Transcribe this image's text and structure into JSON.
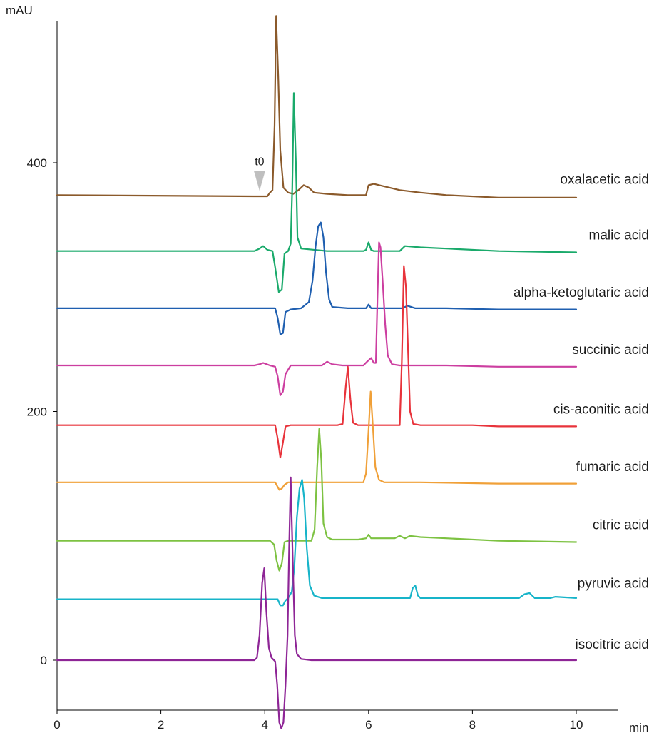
{
  "chart_data": {
    "type": "line",
    "title": "",
    "xlabel": "min",
    "ylabel": "mAU",
    "xlim": [
      0,
      10
    ],
    "ylim": [
      -50,
      520
    ],
    "x_ticks": [
      0,
      2,
      4,
      6,
      8,
      10
    ],
    "y_ticks": [
      0,
      200,
      400
    ],
    "grid": false,
    "annotations": [
      {
        "text": "t0",
        "x": 3.9,
        "marker": "triangle-down",
        "color": "#bfbfbf"
      }
    ],
    "series": [
      {
        "name": "oxalacetic acid",
        "color": "#8b5a2b",
        "baseline": 374,
        "points": [
          [
            0,
            374
          ],
          [
            3.8,
            373
          ],
          [
            3.95,
            373
          ],
          [
            4.05,
            373
          ],
          [
            4.1,
            376
          ],
          [
            4.15,
            378
          ],
          [
            4.19,
            430
          ],
          [
            4.22,
            518
          ],
          [
            4.26,
            470
          ],
          [
            4.3,
            410
          ],
          [
            4.36,
            380
          ],
          [
            4.45,
            376
          ],
          [
            4.55,
            375
          ],
          [
            4.65,
            378
          ],
          [
            4.75,
            382
          ],
          [
            4.85,
            380
          ],
          [
            4.95,
            376
          ],
          [
            5.2,
            375
          ],
          [
            5.6,
            374
          ],
          [
            5.95,
            374
          ],
          [
            6.0,
            382
          ],
          [
            6.1,
            383
          ],
          [
            6.3,
            381
          ],
          [
            6.6,
            378
          ],
          [
            7.0,
            376
          ],
          [
            7.5,
            374
          ],
          [
            8.5,
            372
          ],
          [
            10,
            372
          ]
        ]
      },
      {
        "name": "malic acid",
        "color": "#1aaa6b",
        "baseline": 329,
        "points": [
          [
            0,
            329
          ],
          [
            3.8,
            329
          ],
          [
            3.9,
            331
          ],
          [
            3.97,
            333
          ],
          [
            4.05,
            330
          ],
          [
            4.15,
            329
          ],
          [
            4.2,
            316
          ],
          [
            4.27,
            296
          ],
          [
            4.33,
            298
          ],
          [
            4.38,
            327
          ],
          [
            4.45,
            329
          ],
          [
            4.5,
            335
          ],
          [
            4.53,
            380
          ],
          [
            4.56,
            456
          ],
          [
            4.6,
            400
          ],
          [
            4.63,
            340
          ],
          [
            4.7,
            331
          ],
          [
            5.2,
            329
          ],
          [
            5.9,
            329
          ],
          [
            5.95,
            330
          ],
          [
            6.0,
            336
          ],
          [
            6.05,
            330
          ],
          [
            6.1,
            329
          ],
          [
            6.6,
            329
          ],
          [
            6.7,
            333
          ],
          [
            7.0,
            332
          ],
          [
            7.5,
            331
          ],
          [
            8.5,
            329
          ],
          [
            10,
            328
          ]
        ]
      },
      {
        "name": "alpha-ketoglutaric acid",
        "color": "#1f5fb0",
        "baseline": 283,
        "points": [
          [
            0,
            283
          ],
          [
            3.8,
            283
          ],
          [
            4.2,
            283
          ],
          [
            4.25,
            275
          ],
          [
            4.3,
            262
          ],
          [
            4.35,
            263
          ],
          [
            4.4,
            280
          ],
          [
            4.5,
            282
          ],
          [
            4.7,
            283
          ],
          [
            4.85,
            288
          ],
          [
            4.92,
            305
          ],
          [
            4.98,
            333
          ],
          [
            5.03,
            349
          ],
          [
            5.08,
            352
          ],
          [
            5.13,
            340
          ],
          [
            5.18,
            312
          ],
          [
            5.24,
            290
          ],
          [
            5.3,
            284
          ],
          [
            5.6,
            283
          ],
          [
            5.95,
            283
          ],
          [
            6.0,
            286
          ],
          [
            6.05,
            283
          ],
          [
            6.5,
            283
          ],
          [
            6.65,
            283
          ],
          [
            6.75,
            285
          ],
          [
            6.9,
            283
          ],
          [
            7.5,
            283
          ],
          [
            8.5,
            282
          ],
          [
            10,
            282
          ]
        ]
      },
      {
        "name": "succinic  acid",
        "color": "#cc3ea0",
        "baseline": 237,
        "points": [
          [
            0,
            237
          ],
          [
            3.8,
            237
          ],
          [
            3.9,
            238
          ],
          [
            3.97,
            239
          ],
          [
            4.1,
            237
          ],
          [
            4.2,
            236
          ],
          [
            4.25,
            228
          ],
          [
            4.3,
            213
          ],
          [
            4.35,
            216
          ],
          [
            4.4,
            230
          ],
          [
            4.5,
            237
          ],
          [
            5.1,
            237
          ],
          [
            5.2,
            240
          ],
          [
            5.3,
            238
          ],
          [
            5.5,
            237
          ],
          [
            5.9,
            237
          ],
          [
            5.97,
            240
          ],
          [
            6.05,
            243
          ],
          [
            6.1,
            239
          ],
          [
            6.14,
            239
          ],
          [
            6.17,
            290
          ],
          [
            6.2,
            336
          ],
          [
            6.23,
            332
          ],
          [
            6.27,
            305
          ],
          [
            6.32,
            270
          ],
          [
            6.37,
            245
          ],
          [
            6.45,
            238
          ],
          [
            6.6,
            237
          ],
          [
            7.0,
            237
          ],
          [
            7.5,
            237
          ],
          [
            8.5,
            236
          ],
          [
            10,
            236
          ]
        ]
      },
      {
        "name": "cis-aconitic acid",
        "color": "#e8333b",
        "baseline": 189,
        "points": [
          [
            0,
            189
          ],
          [
            3.8,
            189
          ],
          [
            4.2,
            189
          ],
          [
            4.25,
            178
          ],
          [
            4.3,
            163
          ],
          [
            4.35,
            175
          ],
          [
            4.4,
            188
          ],
          [
            4.5,
            189
          ],
          [
            5.4,
            189
          ],
          [
            5.5,
            190
          ],
          [
            5.56,
            220
          ],
          [
            5.6,
            236
          ],
          [
            5.65,
            210
          ],
          [
            5.7,
            191
          ],
          [
            5.8,
            189
          ],
          [
            6.6,
            189
          ],
          [
            6.64,
            240
          ],
          [
            6.68,
            317
          ],
          [
            6.72,
            300
          ],
          [
            6.76,
            250
          ],
          [
            6.8,
            200
          ],
          [
            6.86,
            190
          ],
          [
            7.0,
            189
          ],
          [
            8.0,
            189
          ],
          [
            8.5,
            188
          ],
          [
            10,
            188
          ]
        ]
      },
      {
        "name": "fumaric  acid",
        "color": "#f0a038",
        "baseline": 143,
        "points": [
          [
            0,
            143
          ],
          [
            3.8,
            143
          ],
          [
            4.2,
            143
          ],
          [
            4.28,
            137
          ],
          [
            4.33,
            138
          ],
          [
            4.38,
            141
          ],
          [
            4.45,
            143
          ],
          [
            5.9,
            143
          ],
          [
            5.95,
            150
          ],
          [
            6.0,
            185
          ],
          [
            6.04,
            216
          ],
          [
            6.08,
            190
          ],
          [
            6.13,
            155
          ],
          [
            6.2,
            145
          ],
          [
            6.3,
            143
          ],
          [
            7.0,
            143
          ],
          [
            8.5,
            142
          ],
          [
            10,
            142
          ]
        ]
      },
      {
        "name": "citric  acid",
        "color": "#7dc242",
        "baseline": 96,
        "points": [
          [
            0,
            96
          ],
          [
            3.8,
            96
          ],
          [
            4.1,
            96
          ],
          [
            4.18,
            93
          ],
          [
            4.23,
            80
          ],
          [
            4.28,
            72
          ],
          [
            4.33,
            78
          ],
          [
            4.38,
            95
          ],
          [
            4.45,
            96
          ],
          [
            4.9,
            96
          ],
          [
            4.96,
            105
          ],
          [
            5.01,
            155
          ],
          [
            5.05,
            186
          ],
          [
            5.09,
            160
          ],
          [
            5.13,
            110
          ],
          [
            5.2,
            99
          ],
          [
            5.3,
            97
          ],
          [
            5.8,
            97
          ],
          [
            5.95,
            98
          ],
          [
            6.0,
            101
          ],
          [
            6.05,
            98
          ],
          [
            6.5,
            98
          ],
          [
            6.6,
            100
          ],
          [
            6.7,
            98
          ],
          [
            6.8,
            100
          ],
          [
            7.0,
            99
          ],
          [
            7.5,
            98
          ],
          [
            8.5,
            96
          ],
          [
            10,
            95
          ]
        ]
      },
      {
        "name": "pyruvic acid",
        "color": "#17b4c9",
        "baseline": 49,
        "points": [
          [
            0,
            49
          ],
          [
            3.8,
            49
          ],
          [
            4.25,
            49
          ],
          [
            4.3,
            44
          ],
          [
            4.35,
            44
          ],
          [
            4.4,
            48
          ],
          [
            4.45,
            50
          ],
          [
            4.52,
            55
          ],
          [
            4.57,
            75
          ],
          [
            4.62,
            115
          ],
          [
            4.67,
            138
          ],
          [
            4.72,
            145
          ],
          [
            4.76,
            130
          ],
          [
            4.81,
            90
          ],
          [
            4.87,
            60
          ],
          [
            4.95,
            52
          ],
          [
            5.1,
            50
          ],
          [
            5.5,
            50
          ],
          [
            6.0,
            50
          ],
          [
            6.8,
            50
          ],
          [
            6.85,
            58
          ],
          [
            6.9,
            60
          ],
          [
            6.95,
            52
          ],
          [
            7.0,
            50
          ],
          [
            8.0,
            50
          ],
          [
            8.9,
            50
          ],
          [
            9.0,
            53
          ],
          [
            9.1,
            54
          ],
          [
            9.2,
            50
          ],
          [
            9.5,
            50
          ],
          [
            9.6,
            51
          ],
          [
            10,
            50
          ]
        ]
      },
      {
        "name": "isocitric acid",
        "color": "#8e2596",
        "baseline": 0,
        "points": [
          [
            0,
            0
          ],
          [
            3.8,
            0
          ],
          [
            3.85,
            2
          ],
          [
            3.9,
            20
          ],
          [
            3.95,
            62
          ],
          [
            3.99,
            74
          ],
          [
            4.03,
            40
          ],
          [
            4.08,
            10
          ],
          [
            4.13,
            2
          ],
          [
            4.2,
            -1
          ],
          [
            4.24,
            -20
          ],
          [
            4.28,
            -50
          ],
          [
            4.32,
            -55
          ],
          [
            4.36,
            -50
          ],
          [
            4.4,
            -20
          ],
          [
            4.44,
            20
          ],
          [
            4.47,
            90
          ],
          [
            4.5,
            147
          ],
          [
            4.54,
            80
          ],
          [
            4.58,
            20
          ],
          [
            4.62,
            5
          ],
          [
            4.7,
            1
          ],
          [
            4.9,
            0
          ],
          [
            5.5,
            0
          ],
          [
            10,
            0
          ]
        ]
      }
    ]
  }
}
